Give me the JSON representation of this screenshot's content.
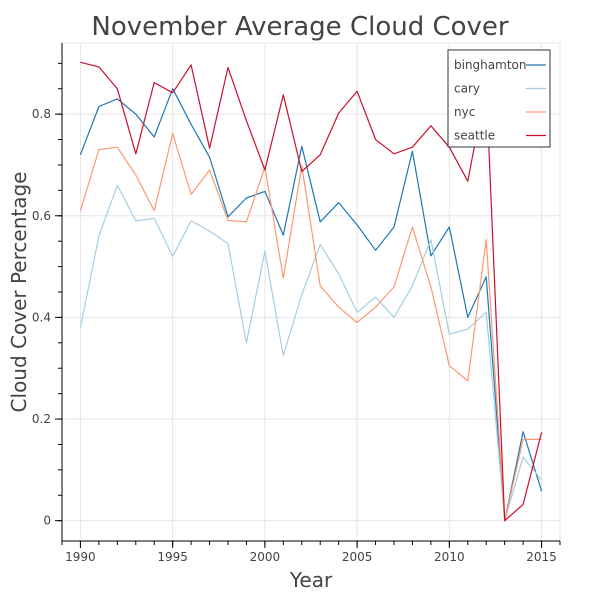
{
  "chart_data": {
    "type": "line",
    "title": "November Average Cloud Cover",
    "xlabel": "Year",
    "ylabel": "Cloud Cover Percentage",
    "xlim": [
      1989,
      2016
    ],
    "ylim": [
      -0.04,
      0.94
    ],
    "x_ticks": [
      1990,
      1995,
      2000,
      2005,
      2010,
      2015
    ],
    "y_ticks": [
      0,
      0.2,
      0.4,
      0.6,
      0.8
    ],
    "grid": true,
    "legend_position": "top-right",
    "x": [
      1990,
      1991,
      1992,
      1993,
      1994,
      1995,
      1996,
      1997,
      1998,
      1999,
      2000,
      2001,
      2002,
      2003,
      2004,
      2005,
      2006,
      2007,
      2008,
      2009,
      2010,
      2011,
      2012,
      2013,
      2014,
      2015
    ],
    "series": [
      {
        "name": "binghamton",
        "color": "#1f78b4",
        "values": [
          0.72,
          0.815,
          0.83,
          0.8,
          0.755,
          0.85,
          0.78,
          0.715,
          0.598,
          0.635,
          0.648,
          0.562,
          0.737,
          0.588,
          0.626,
          0.582,
          0.532,
          0.578,
          0.727,
          0.521,
          0.578,
          0.4,
          0.48,
          0.0,
          0.175,
          0.058
        ]
      },
      {
        "name": "cary",
        "color": "#a6cee3",
        "values": [
          0.38,
          0.56,
          0.66,
          0.59,
          0.595,
          0.52,
          0.59,
          0.57,
          0.545,
          0.35,
          0.53,
          0.325,
          0.445,
          0.543,
          0.486,
          0.41,
          0.44,
          0.4,
          0.462,
          0.553,
          0.367,
          0.377,
          0.41,
          0.0,
          0.125,
          0.08
        ]
      },
      {
        "name": "nyc",
        "color": "#fb9a6f",
        "values": [
          0.61,
          0.73,
          0.735,
          0.68,
          0.61,
          0.762,
          0.642,
          0.69,
          0.591,
          0.588,
          0.696,
          0.477,
          0.698,
          0.462,
          0.42,
          0.39,
          0.42,
          0.46,
          0.578,
          0.46,
          0.305,
          0.275,
          0.553,
          0.0,
          0.16,
          0.16
        ]
      },
      {
        "name": "seattle",
        "color": "#c8102e",
        "values": [
          0.902,
          0.893,
          0.85,
          0.722,
          0.862,
          0.842,
          0.897,
          0.733,
          0.892,
          0.787,
          0.69,
          0.838,
          0.687,
          0.72,
          0.802,
          0.845,
          0.75,
          0.722,
          0.735,
          0.777,
          0.735,
          0.668,
          0.858,
          0.0,
          0.032,
          0.174
        ]
      }
    ]
  }
}
